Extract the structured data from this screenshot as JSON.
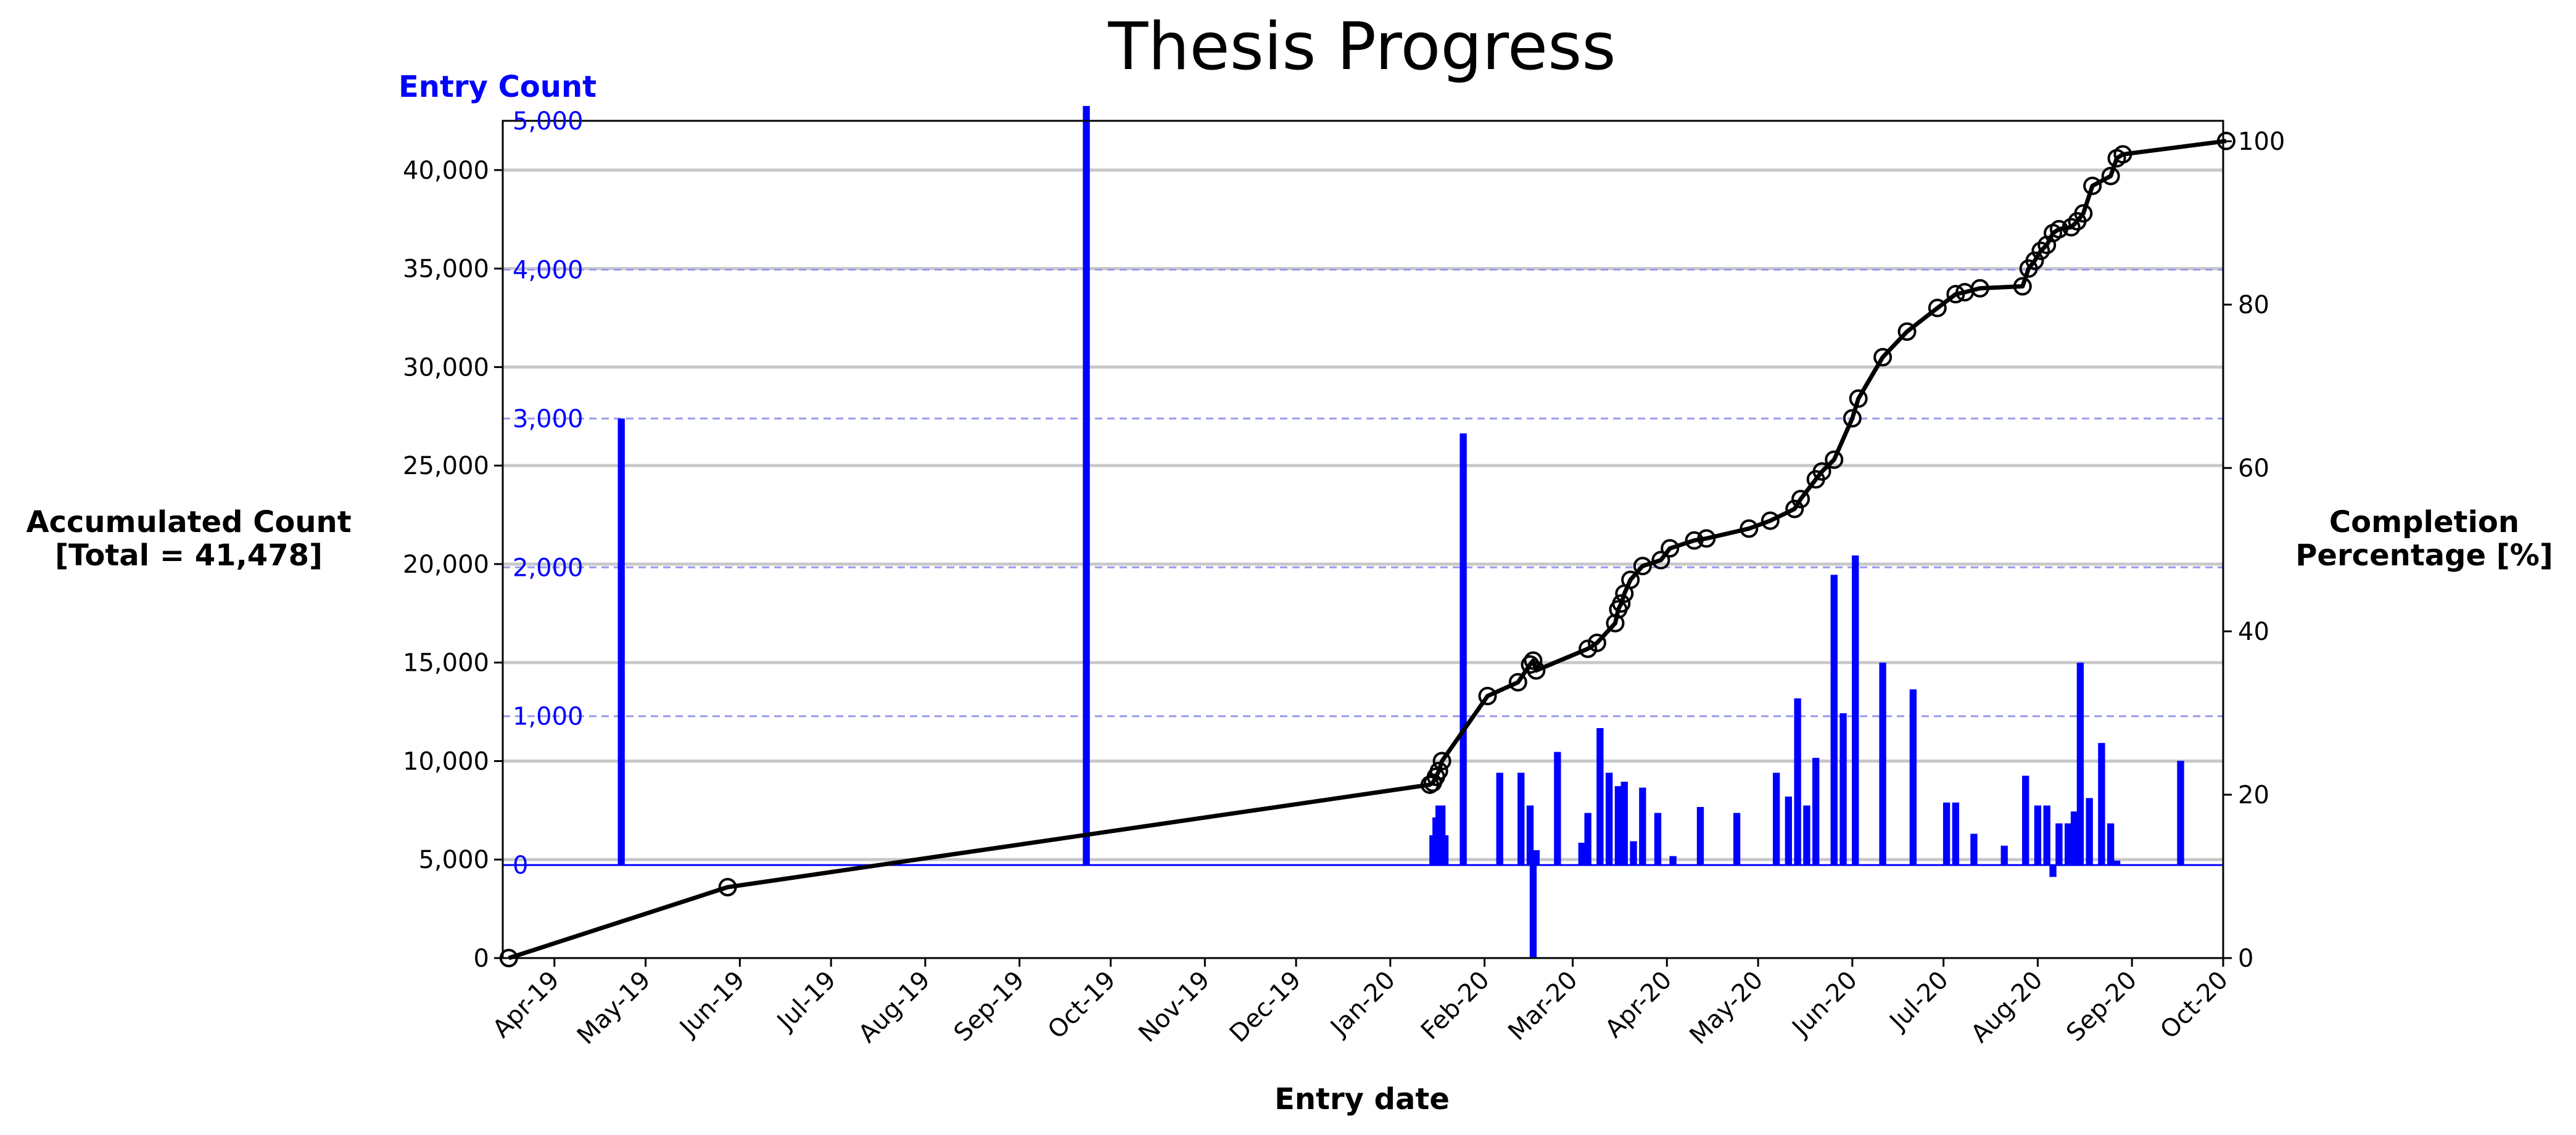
{
  "chart_data": {
    "type": "bar+line",
    "title": "Thesis Progress",
    "xlabel": "Entry date",
    "x_tick_labels": [
      "Apr-19",
      "May-19",
      "Jun-19",
      "Jul-19",
      "Aug-19",
      "Sep-19",
      "Oct-19",
      "Nov-19",
      "Dec-19",
      "Jan-20",
      "Feb-20",
      "Mar-20",
      "Apr-20",
      "May-20",
      "Jun-20",
      "Jul-20",
      "Aug-20",
      "Sep-20",
      "Oct-20"
    ],
    "y_left": {
      "label_line1": "Accumulated Count",
      "label_line2": "[Total = 41,478]",
      "range": [
        0,
        42500
      ],
      "ticks": [
        "0",
        "5,000",
        "10,000",
        "15,000",
        "20,000",
        "25,000",
        "30,000",
        "35,000",
        "40,000"
      ]
    },
    "y_entry": {
      "label": "Entry Count",
      "range": [
        -625,
        5000
      ],
      "ticks": [
        "0",
        "1,000",
        "2,000",
        "3,000",
        "4,000",
        "5,000"
      ]
    },
    "y_right": {
      "label_line1": "Completion",
      "label_line2": "Percentage [%]",
      "range": [
        0,
        102.5
      ],
      "ticks": [
        "0",
        "20",
        "40",
        "60",
        "80",
        "100"
      ]
    },
    "grid": true,
    "colors": {
      "bars": "#0000ff",
      "line": "#000000",
      "grid": "#c8c8c8",
      "entry_grid": "#9999ee"
    },
    "bar_series": {
      "name": "Entry Count",
      "bars": [
        {
          "date": "2019-04-23",
          "value": 3000
        },
        {
          "date": "2019-09-23",
          "value": 5100
        },
        {
          "date": "2020-01-15",
          "value": 200
        },
        {
          "date": "2020-01-16",
          "value": 320
        },
        {
          "date": "2020-01-17",
          "value": 400
        },
        {
          "date": "2020-01-18",
          "value": 400
        },
        {
          "date": "2020-01-19",
          "value": 200
        },
        {
          "date": "2020-01-25",
          "value": 2900
        },
        {
          "date": "2020-02-06",
          "value": 620
        },
        {
          "date": "2020-02-13",
          "value": 620
        },
        {
          "date": "2020-02-16",
          "value": 400
        },
        {
          "date": "2020-02-17",
          "value": -620
        },
        {
          "date": "2020-02-18",
          "value": 100
        },
        {
          "date": "2020-02-25",
          "value": 760
        },
        {
          "date": "2020-03-04",
          "value": 150
        },
        {
          "date": "2020-03-06",
          "value": 350
        },
        {
          "date": "2020-03-10",
          "value": 920
        },
        {
          "date": "2020-03-13",
          "value": 620
        },
        {
          "date": "2020-03-16",
          "value": 530
        },
        {
          "date": "2020-03-18",
          "value": 560
        },
        {
          "date": "2020-03-21",
          "value": 160
        },
        {
          "date": "2020-03-24",
          "value": 520
        },
        {
          "date": "2020-03-29",
          "value": 350
        },
        {
          "date": "2020-04-03",
          "value": 60
        },
        {
          "date": "2020-04-12",
          "value": 390
        },
        {
          "date": "2020-04-24",
          "value": 350
        },
        {
          "date": "2020-05-07",
          "value": 620
        },
        {
          "date": "2020-05-11",
          "value": 460
        },
        {
          "date": "2020-05-14",
          "value": 1120
        },
        {
          "date": "2020-05-17",
          "value": 400
        },
        {
          "date": "2020-05-20",
          "value": 720
        },
        {
          "date": "2020-05-26",
          "value": 1950
        },
        {
          "date": "2020-05-29",
          "value": 1020
        },
        {
          "date": "2020-06-02",
          "value": 2080
        },
        {
          "date": "2020-06-11",
          "value": 1360
        },
        {
          "date": "2020-06-21",
          "value": 1180
        },
        {
          "date": "2020-07-02",
          "value": 420
        },
        {
          "date": "2020-07-05",
          "value": 420
        },
        {
          "date": "2020-07-11",
          "value": 210
        },
        {
          "date": "2020-07-21",
          "value": 130
        },
        {
          "date": "2020-07-28",
          "value": 600
        },
        {
          "date": "2020-08-01",
          "value": 400
        },
        {
          "date": "2020-08-04",
          "value": 400
        },
        {
          "date": "2020-08-06",
          "value": -80
        },
        {
          "date": "2020-08-08",
          "value": 280
        },
        {
          "date": "2020-08-11",
          "value": 280
        },
        {
          "date": "2020-08-13",
          "value": 360
        },
        {
          "date": "2020-08-15",
          "value": 1360
        },
        {
          "date": "2020-08-18",
          "value": 450
        },
        {
          "date": "2020-08-22",
          "value": 820
        },
        {
          "date": "2020-08-25",
          "value": 280
        },
        {
          "date": "2020-08-27",
          "value": 30
        },
        {
          "date": "2020-09-17",
          "value": 700
        }
      ]
    },
    "line_series": {
      "name": "Accumulated Count",
      "points": [
        {
          "date": "2019-03-17",
          "value": 0
        },
        {
          "date": "2019-05-28",
          "value": 3600
        },
        {
          "date": "2020-01-14",
          "value": 8800
        },
        {
          "date": "2020-01-15",
          "value": 8900
        },
        {
          "date": "2020-01-16",
          "value": 9200
        },
        {
          "date": "2020-01-17",
          "value": 9500
        },
        {
          "date": "2020-01-18",
          "value": 10000
        },
        {
          "date": "2020-02-02",
          "value": 13300
        },
        {
          "date": "2020-02-12",
          "value": 14000
        },
        {
          "date": "2020-02-16",
          "value": 14900
        },
        {
          "date": "2020-02-17",
          "value": 15100
        },
        {
          "date": "2020-02-18",
          "value": 14600
        },
        {
          "date": "2020-03-06",
          "value": 15700
        },
        {
          "date": "2020-03-09",
          "value": 16000
        },
        {
          "date": "2020-03-15",
          "value": 17000
        },
        {
          "date": "2020-03-16",
          "value": 17700
        },
        {
          "date": "2020-03-17",
          "value": 18000
        },
        {
          "date": "2020-03-18",
          "value": 18500
        },
        {
          "date": "2020-03-20",
          "value": 19200
        },
        {
          "date": "2020-03-24",
          "value": 19900
        },
        {
          "date": "2020-03-30",
          "value": 20200
        },
        {
          "date": "2020-04-02",
          "value": 20800
        },
        {
          "date": "2020-04-10",
          "value": 21200
        },
        {
          "date": "2020-04-14",
          "value": 21300
        },
        {
          "date": "2020-04-28",
          "value": 21800
        },
        {
          "date": "2020-05-05",
          "value": 22200
        },
        {
          "date": "2020-05-13",
          "value": 22800
        },
        {
          "date": "2020-05-15",
          "value": 23300
        },
        {
          "date": "2020-05-20",
          "value": 24300
        },
        {
          "date": "2020-05-22",
          "value": 24700
        },
        {
          "date": "2020-05-26",
          "value": 25300
        },
        {
          "date": "2020-06-01",
          "value": 27400
        },
        {
          "date": "2020-06-03",
          "value": 28400
        },
        {
          "date": "2020-06-11",
          "value": 30500
        },
        {
          "date": "2020-06-19",
          "value": 31800
        },
        {
          "date": "2020-06-29",
          "value": 33000
        },
        {
          "date": "2020-07-05",
          "value": 33700
        },
        {
          "date": "2020-07-08",
          "value": 33800
        },
        {
          "date": "2020-07-13",
          "value": 34000
        },
        {
          "date": "2020-07-27",
          "value": 34100
        },
        {
          "date": "2020-07-29",
          "value": 35000
        },
        {
          "date": "2020-07-31",
          "value": 35400
        },
        {
          "date": "2020-08-02",
          "value": 35900
        },
        {
          "date": "2020-08-04",
          "value": 36200
        },
        {
          "date": "2020-08-06",
          "value": 36800
        },
        {
          "date": "2020-08-08",
          "value": 37000
        },
        {
          "date": "2020-08-12",
          "value": 37100
        },
        {
          "date": "2020-08-14",
          "value": 37400
        },
        {
          "date": "2020-08-16",
          "value": 37800
        },
        {
          "date": "2020-08-19",
          "value": 39200
        },
        {
          "date": "2020-08-25",
          "value": 39700
        },
        {
          "date": "2020-08-27",
          "value": 40600
        },
        {
          "date": "2020-08-29",
          "value": 40800
        },
        {
          "date": "2020-10-02",
          "value": 41478
        }
      ]
    }
  }
}
